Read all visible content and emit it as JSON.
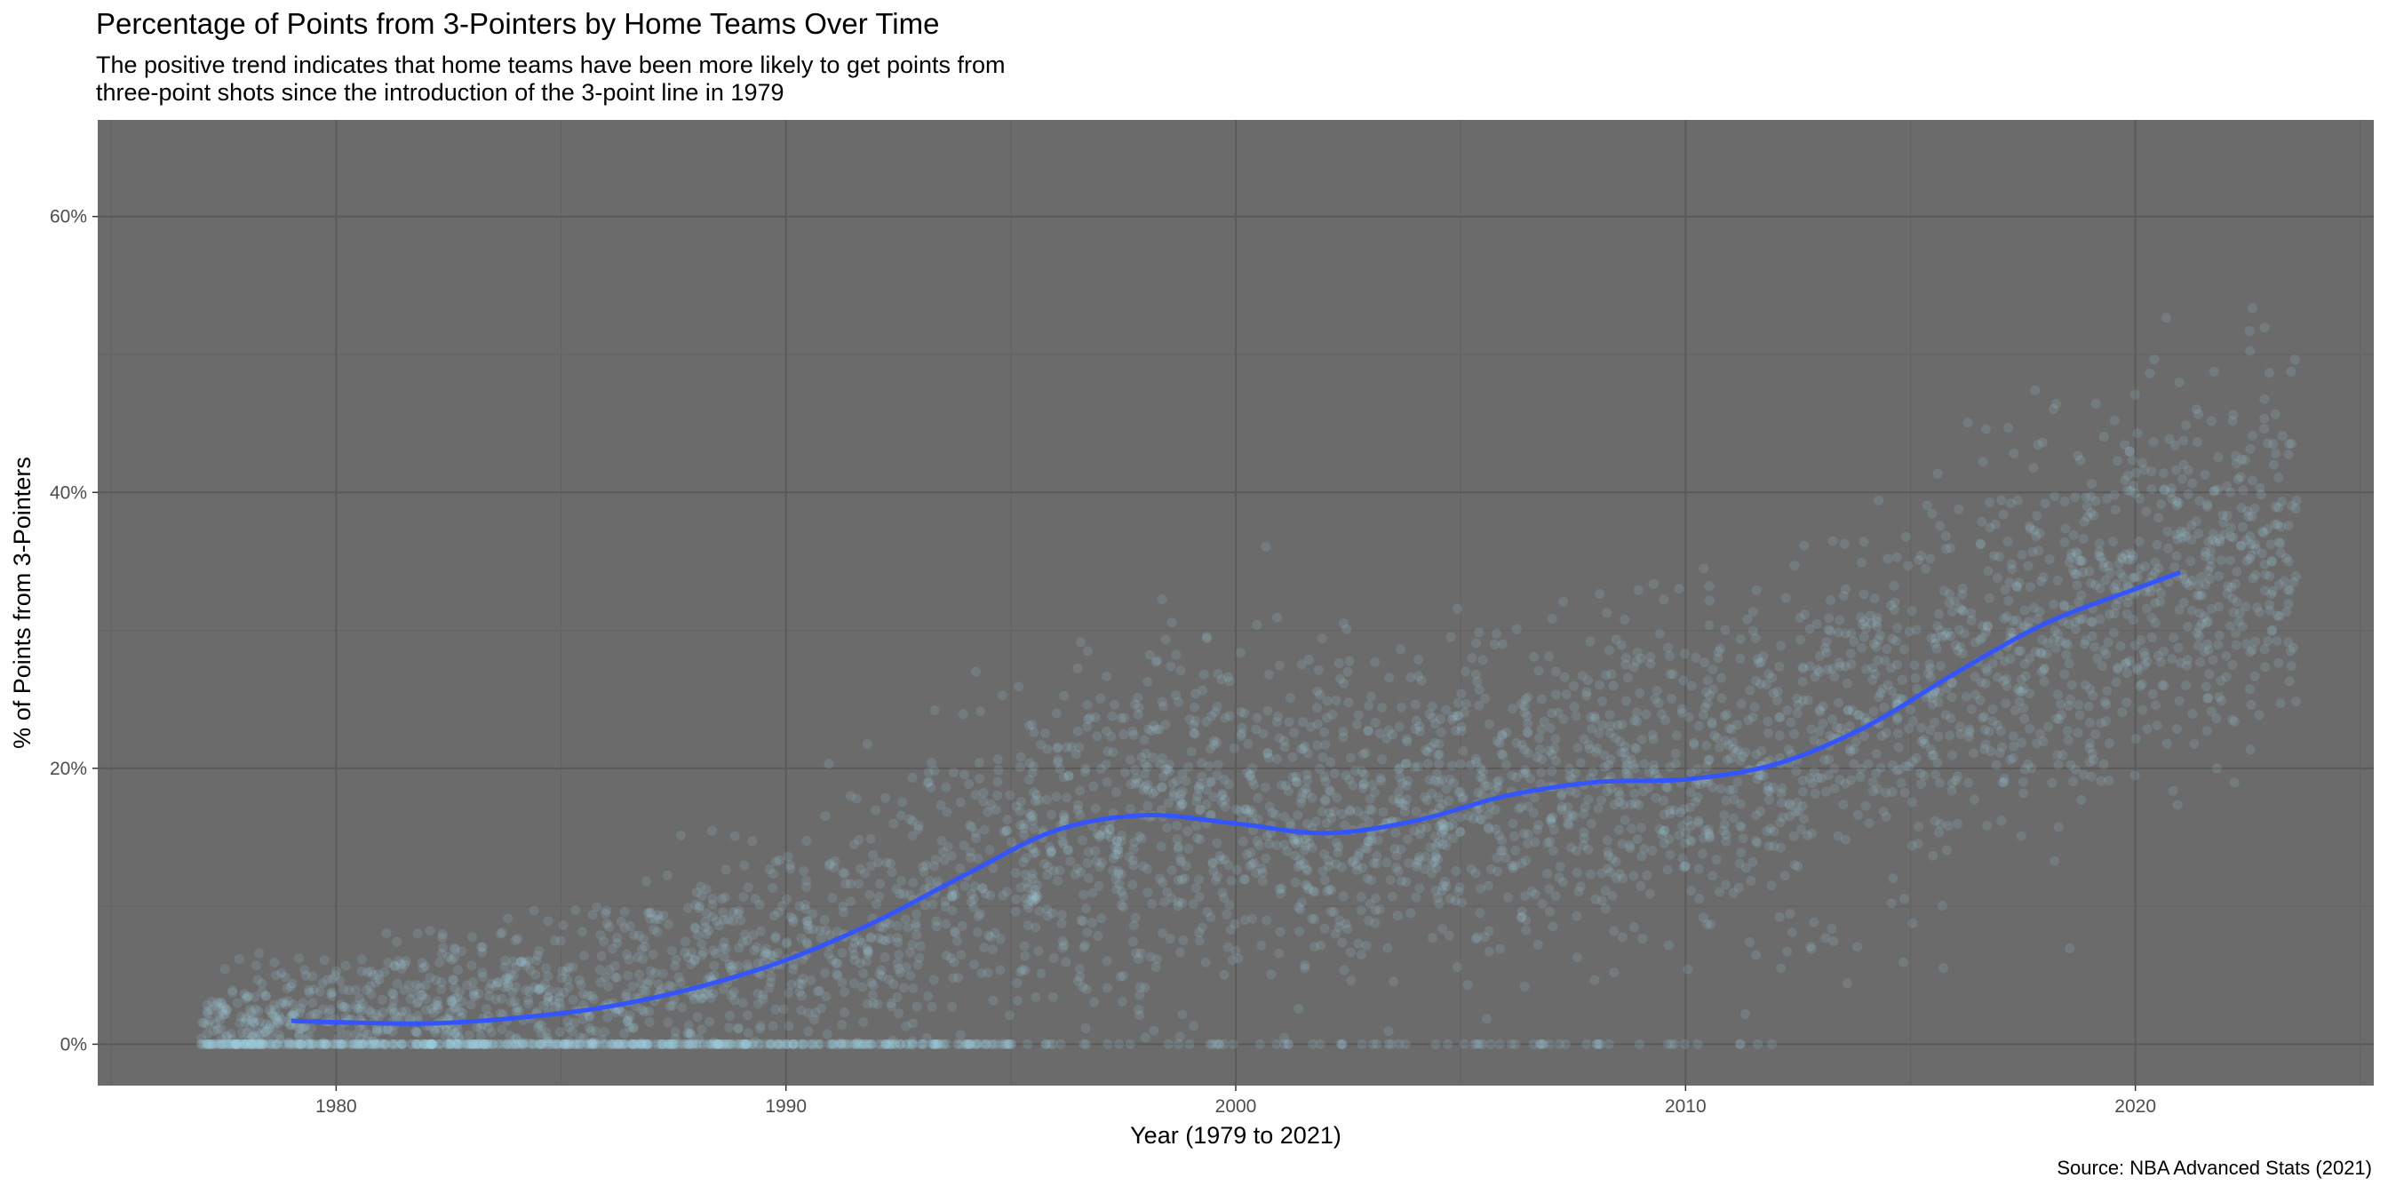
{
  "title": "Percentage of Points from 3-Pointers by Home Teams Over Time",
  "subtitle_lines": [
    "The positive trend indicates that home teams have been more likely to get points from",
    "three-point shots since the introduction of the 3-point line in 1979"
  ],
  "caption": "Source: NBA Advanced Stats (2021)",
  "colors": {
    "panel": "#6b6b6b",
    "grid_major": "#5a5a5a",
    "grid_minor": "#636363",
    "points": "#9fd2e8",
    "trend": "#3355ff"
  },
  "chart_data": {
    "type": "scatter",
    "title": "Percentage of Points from 3-Pointers by Home Teams Over Time",
    "xlabel": "Year (1979 to 2021)",
    "ylabel": "% of Points from 3-Pointers",
    "xlim": [
      1974.7,
      2025.3
    ],
    "ylim": [
      -3,
      67
    ],
    "x_ticks": [
      1980,
      1990,
      2000,
      2010,
      2020
    ],
    "x_tick_labels": [
      "1980",
      "1990",
      "2000",
      "2010",
      "2020"
    ],
    "y_ticks": [
      0,
      20,
      40,
      60
    ],
    "y_tick_labels": [
      "0%",
      "20%",
      "40%",
      "60%"
    ],
    "grid": true,
    "legend": "none",
    "series": [
      {
        "kind": "scatter",
        "description_points": "individual home-team games, semi-transparent",
        "x_range": [
          1977,
          2023
        ],
        "density_by_year": [
          {
            "x": 1977,
            "mean": 1.0,
            "spread": 2.0
          },
          {
            "x": 1980,
            "mean": 2.0,
            "spread": 3.0
          },
          {
            "x": 1985,
            "mean": 3.0,
            "spread": 4.0
          },
          {
            "x": 1990,
            "mean": 6.0,
            "spread": 6.0
          },
          {
            "x": 1995,
            "mean": 13.0,
            "spread": 8.0
          },
          {
            "x": 1998,
            "mean": 16.5,
            "spread": 8.5
          },
          {
            "x": 2002,
            "mean": 15.5,
            "spread": 8.0
          },
          {
            "x": 2008,
            "mean": 19.0,
            "spread": 8.0
          },
          {
            "x": 2012,
            "mean": 20.0,
            "spread": 8.0
          },
          {
            "x": 2016,
            "mean": 26.0,
            "spread": 9.0
          },
          {
            "x": 2020,
            "mean": 33.0,
            "spread": 9.0
          },
          {
            "x": 2023,
            "mean": 36.0,
            "spread": 9.0
          }
        ]
      },
      {
        "kind": "line",
        "description": "smoothed trend",
        "x": [
          1979,
          1980,
          1982,
          1984,
          1986,
          1988,
          1990,
          1992,
          1994,
          1996,
          1998,
          2000,
          2002,
          2004,
          2006,
          2008,
          2010,
          2012,
          2014,
          2016,
          2018,
          2020,
          2021
        ],
        "y": [
          1.7,
          1.6,
          1.5,
          1.9,
          2.7,
          4.1,
          6.1,
          8.9,
          12.3,
          15.5,
          16.6,
          16.0,
          15.3,
          16.2,
          18.0,
          19.0,
          19.2,
          20.3,
          23.0,
          26.9,
          30.5,
          33.0,
          34.2
        ]
      }
    ]
  }
}
